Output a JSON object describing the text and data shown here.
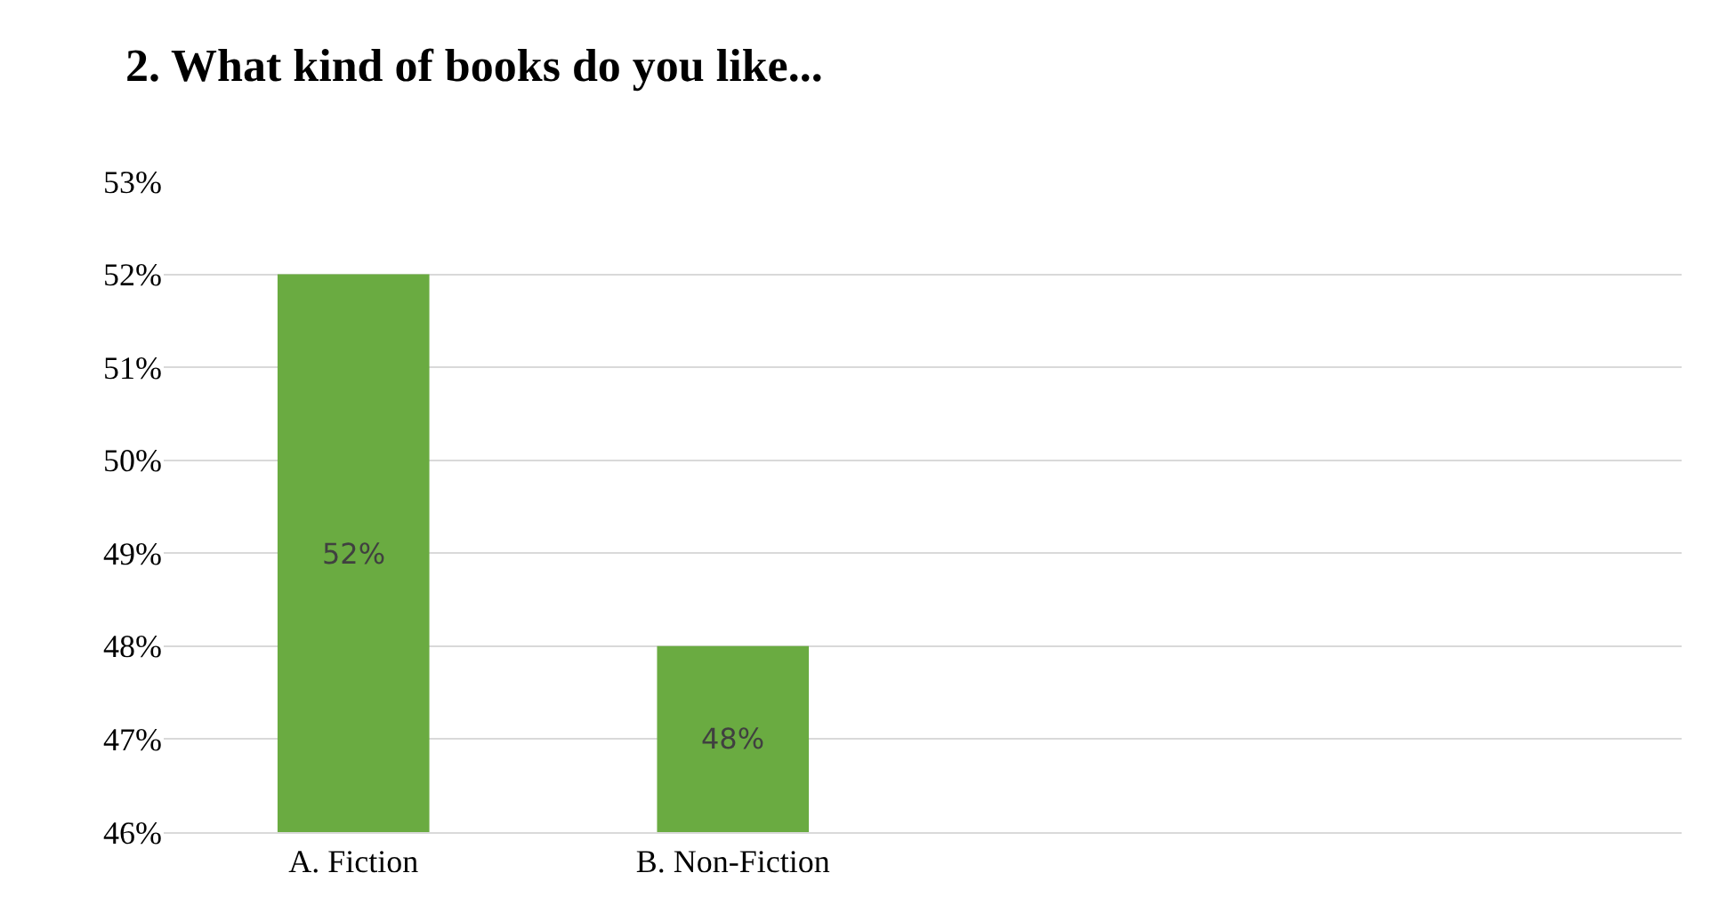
{
  "chart_data": {
    "type": "bar",
    "title": "2. What kind of books do you like...",
    "categories": [
      "A. Fiction",
      "B. Non-Fiction",
      null,
      null
    ],
    "values": [
      52,
      48,
      null,
      null
    ],
    "color": "#6aab41",
    "value_labels": [
      "52%",
      "48%",
      null,
      null
    ],
    "ylim": [
      46,
      53
    ],
    "yticks": [
      {
        "value": 46,
        "label": "46%"
      },
      {
        "value": 47,
        "label": "47%"
      },
      {
        "value": 48,
        "label": "48%"
      },
      {
        "value": 49,
        "label": "49%"
      },
      {
        "value": 50,
        "label": "50%"
      },
      {
        "value": 51,
        "label": "51%"
      },
      {
        "value": 52,
        "label": "52%"
      },
      {
        "value": 53,
        "label": "53%"
      }
    ],
    "grid": "y"
  }
}
